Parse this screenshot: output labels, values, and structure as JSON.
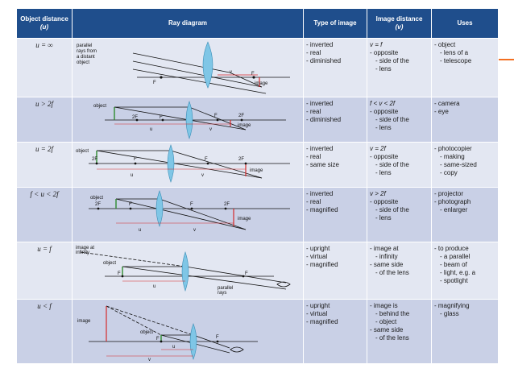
{
  "colors": {
    "header_bg": "#1f4e8c",
    "row_light": "#e3e7f2",
    "row_dark": "#c9d0e6",
    "lens": "#7fc6e6",
    "object": "#2e8b2e",
    "image": "#d62b2b",
    "accent": "#f36f21"
  },
  "header": {
    "object_distance": "Object distance",
    "object_distance_sub": "(u)",
    "ray_diagram": "Ray diagram",
    "type_of_image": "Type of image",
    "image_distance": "Image distance",
    "image_distance_sub": "(v)",
    "uses": "Uses"
  },
  "rows": [
    {
      "distance": "u = ∞",
      "diagram_labels": {
        "parallel": [
          "parallel",
          "rays from",
          "a distant",
          "object"
        ],
        "F": "F",
        "F2": "F",
        "v": "v",
        "image": "image"
      },
      "type": [
        "inverted",
        "real",
        "diminished"
      ],
      "image_distance": [
        "v = f",
        "opposite",
        "side of the",
        "lens"
      ],
      "uses": [
        "object",
        "lens of a",
        "telescope"
      ]
    },
    {
      "distance": "u > 2f",
      "diagram_labels": {
        "object": "object",
        "2F": "2F",
        "F": "F",
        "F2": "F",
        "2F2": "2F",
        "u": "u",
        "v": "v",
        "image": "image"
      },
      "type": [
        "inverted",
        "real",
        "diminished"
      ],
      "image_distance": [
        "f < v < 2f",
        "opposite",
        "side of the",
        "lens"
      ],
      "uses": [
        "camera",
        "eye"
      ]
    },
    {
      "distance": "u = 2f",
      "diagram_labels": {
        "object": "object",
        "2F": "2F",
        "F": "F",
        "F2": "F",
        "2F2": "2F",
        "u": "u",
        "v": "v",
        "image": "image"
      },
      "type": [
        "inverted",
        "real",
        "same size"
      ],
      "image_distance": [
        "v = 2f",
        "opposite",
        "side of the",
        "lens"
      ],
      "uses": [
        "photocopier",
        "making",
        "same-sized",
        "copy"
      ]
    },
    {
      "distance": "f < u < 2f",
      "diagram_labels": {
        "object": "object",
        "2F": "2F",
        "F": "F",
        "F2": "F",
        "2F2": "2F",
        "u": "u",
        "v": "v",
        "image": "image"
      },
      "type": [
        "inverted",
        "real",
        "magnified"
      ],
      "image_distance": [
        "v > 2f",
        "opposite",
        "side of the",
        "lens"
      ],
      "uses": [
        "projector",
        "photograph",
        "enlarger"
      ]
    },
    {
      "distance": "u = f",
      "diagram_labels": {
        "image_at": "image at",
        "infinity": "infinity",
        "object": "object",
        "F": "F",
        "F2": "F",
        "u": "u",
        "parallel": "parallel",
        "rays": "rays"
      },
      "type": [
        "upright",
        "virtual",
        "magnified"
      ],
      "image_distance": [
        "image at",
        "infinity",
        "same side",
        "of the lens"
      ],
      "uses": [
        "to produce",
        "a parallel",
        "beam of",
        "light, e.g. a",
        "spotlight"
      ]
    },
    {
      "distance": "u < f",
      "diagram_labels": {
        "image": "image",
        "object": "object",
        "F": "F",
        "F2": "F",
        "u": "u",
        "v": "v"
      },
      "type": [
        "upright",
        "virtual",
        "magnified"
      ],
      "image_distance": [
        "image is",
        "behind the",
        "object",
        "same side",
        "of the lens"
      ],
      "uses": [
        "magnifying",
        "glass"
      ]
    }
  ]
}
